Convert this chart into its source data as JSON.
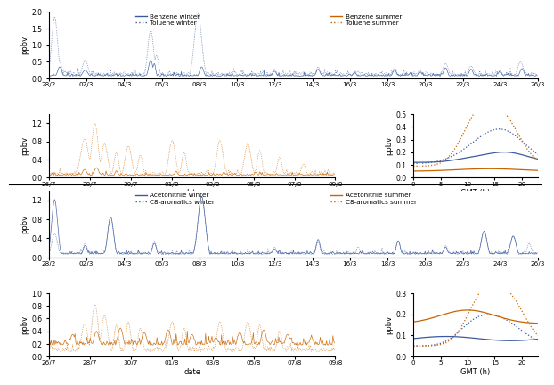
{
  "panel1": {
    "legend_left": [
      "Benzene winter",
      "Toluene winter"
    ],
    "legend_right": [
      "Benzene summer",
      "Toluene summer"
    ],
    "winter_dates": [
      "28/2",
      "02/3",
      "04/3",
      "06/3",
      "08/3",
      "10/3",
      "12/3",
      "14/3",
      "16/3",
      "18/3",
      "20/3",
      "22/3",
      "24/3",
      "26/3"
    ],
    "summer_dates": [
      "26/7",
      "28/7",
      "30/7",
      "01/8",
      "03/8",
      "05/8",
      "07/8",
      "09/8"
    ],
    "gmt_ticks": [
      0,
      5,
      10,
      15,
      20
    ],
    "winter_ylim": [
      0,
      2.0
    ],
    "winter_yticks": [
      0.0,
      0.5,
      1.0,
      1.5,
      2.0
    ],
    "summer_ylim": [
      0,
      1.4
    ],
    "summer_yticks": [
      0.0,
      0.4,
      0.8,
      1.2
    ],
    "daily_ylim": [
      0,
      0.5
    ],
    "daily_yticks": [
      0.0,
      0.1,
      0.2,
      0.3,
      0.4,
      0.5
    ],
    "ylabel": "ppbv",
    "xlabel_date": "date",
    "xlabel_gmt": "GMT (h)"
  },
  "panel2": {
    "legend_left": [
      "Acetonitrile winter",
      "C8-aromatics winter"
    ],
    "legend_right": [
      "Acetonitrile summer",
      "C8-aromatics summer"
    ],
    "winter_dates": [
      "28/2",
      "02/3",
      "04/3",
      "06/3",
      "08/3",
      "10/3",
      "12/3",
      "14/3",
      "16/3",
      "18/3",
      "20/3",
      "22/3",
      "24/3",
      "26/3"
    ],
    "summer_dates": [
      "26/7",
      "28/7",
      "30/7",
      "01/8",
      "03/8",
      "05/8",
      "07/8",
      "09/8"
    ],
    "gmt_ticks": [
      0,
      5,
      10,
      15,
      20
    ],
    "winter_ylim": [
      0,
      1.4
    ],
    "winter_yticks": [
      0.0,
      0.4,
      0.8,
      1.2
    ],
    "summer_ylim": [
      0,
      1.0
    ],
    "summer_yticks": [
      0.0,
      0.2,
      0.4,
      0.6,
      0.8,
      1.0
    ],
    "daily_ylim": [
      0,
      0.3
    ],
    "daily_yticks": [
      0.0,
      0.1,
      0.2,
      0.3
    ],
    "ylabel": "ppbv",
    "xlabel_date": "date",
    "xlabel_gmt": "GMT (h)"
  },
  "colors": {
    "blue": "#3A5BA0",
    "orange": "#C86400"
  }
}
